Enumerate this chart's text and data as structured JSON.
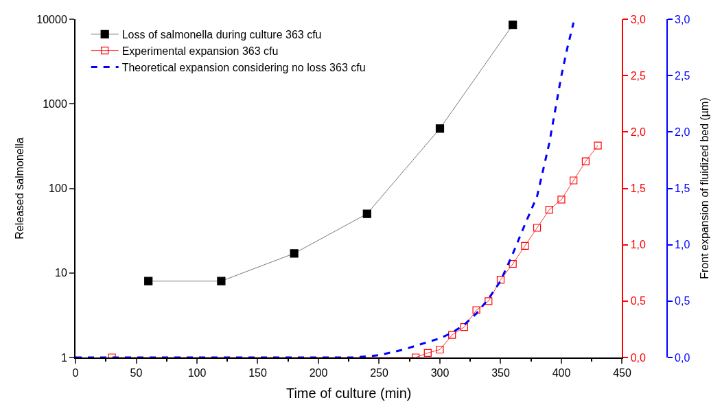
{
  "chart_data": {
    "type": "line",
    "xlabel": "Time of culture (min)",
    "ylabel": "Released salmonella",
    "y3label": "Front expansion of fluidized bed (µm)",
    "xlim": [
      0,
      450
    ],
    "xticks": [
      0,
      50,
      100,
      150,
      200,
      250,
      300,
      350,
      400,
      450
    ],
    "log": "y",
    "ylim": [
      1,
      10000
    ],
    "yticks": [
      1,
      10,
      100,
      1000,
      10000
    ],
    "y2lim": [
      0,
      3
    ],
    "y2ticks": [
      {
        "value": 0,
        "label": "0,0"
      },
      {
        "value": 0.5,
        "label": "0,5"
      },
      {
        "value": 1,
        "label": "1,0"
      },
      {
        "value": 1.5,
        "label": "1,5"
      },
      {
        "value": 2,
        "label": "2,0"
      },
      {
        "value": 2.5,
        "label": "2,5"
      },
      {
        "value": 3,
        "label": "3,0"
      }
    ],
    "y3lim": [
      0,
      3
    ],
    "y3ticks": [
      {
        "value": 0,
        "label": "0,0"
      },
      {
        "value": 0.5,
        "label": "0,5"
      },
      {
        "value": 1,
        "label": "1,0"
      },
      {
        "value": 1.5,
        "label": "1,5"
      },
      {
        "value": 2,
        "label": "2,0"
      },
      {
        "value": 2.5,
        "label": "2,5"
      },
      {
        "value": 3,
        "label": "3,0"
      }
    ],
    "legend": "top left",
    "series": [
      {
        "name": "Loss of salmonella during culture 363 cfu",
        "color": "#000000",
        "marker": "square",
        "line_style": "solid",
        "x": [
          60,
          120,
          180,
          240,
          300,
          360
        ],
        "values": [
          8,
          8,
          17,
          50,
          510,
          8600
        ]
      },
      {
        "name": "Experimental expansion 363 cfu",
        "color": "#ff0000",
        "axis": "y2",
        "marker": "square-open",
        "line_style": "solid",
        "x": [
          30,
          280,
          290,
          300,
          310,
          320,
          330,
          340,
          350,
          360,
          370,
          380,
          390,
          400,
          410,
          420,
          430
        ],
        "values": [
          0.0,
          0.0,
          0.04,
          0.07,
          0.2,
          0.27,
          0.42,
          0.5,
          0.69,
          0.83,
          0.99,
          1.15,
          1.31,
          1.4,
          1.57,
          1.74,
          1.88
        ]
      },
      {
        "name": "Theoretical expansion considering no loss 363 cfu",
        "color": "#0000ff",
        "axis": "y3",
        "marker": "none",
        "line_style": "dashed",
        "x": [
          0,
          50,
          100,
          150,
          200,
          230,
          250,
          270,
          285,
          300,
          310,
          320,
          330,
          340,
          350,
          360,
          370,
          380,
          390,
          400,
          405,
          410
        ],
        "values": [
          0,
          0,
          0,
          0,
          0,
          0,
          0.02,
          0.07,
          0.12,
          0.17,
          0.22,
          0.29,
          0.39,
          0.52,
          0.68,
          0.92,
          1.18,
          1.43,
          1.9,
          2.5,
          2.75,
          2.97
        ]
      }
    ]
  }
}
